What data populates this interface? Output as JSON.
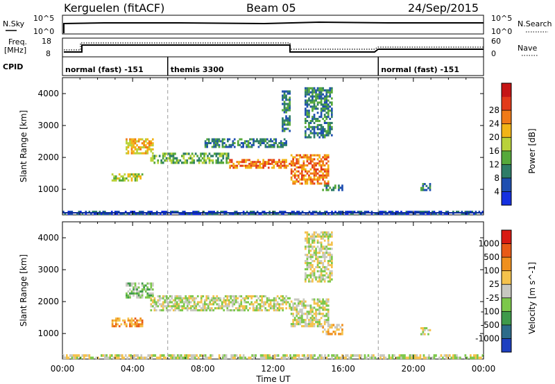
{
  "header": {
    "radar": "Kerguelen (fitACF)",
    "beam": "Beam 05",
    "date": "24/Sep/2015"
  },
  "nsky_panel": {
    "left_label": "N.Sky",
    "right_label": "N.Search",
    "left_ticks": [
      "10^5",
      "10^0"
    ],
    "right_ticks": [
      "10^5",
      "10^0"
    ]
  },
  "freq_panel": {
    "left_label_line1": "Freq.",
    "left_label_line2": "[MHz]",
    "left_ticks": [
      "18",
      "8"
    ],
    "right_label": "Nave",
    "right_ticks": [
      "60",
      "0"
    ]
  },
  "cpid_panel": {
    "label": "CPID",
    "segments": [
      {
        "label": "normal (fast) -151",
        "start": "00:00",
        "end": "06:00"
      },
      {
        "label": "themis 3300",
        "start": "06:00",
        "end": "18:00"
      },
      {
        "label": "normal (fast) -151",
        "start": "18:00",
        "end": "24:00"
      }
    ]
  },
  "power_colorbar": {
    "label": "Power [dB]",
    "ticks": [
      "4",
      "8",
      "12",
      "16",
      "20",
      "24",
      "28"
    ],
    "colors": [
      "#1530e0",
      "#1f4fb0",
      "#2e7d67",
      "#56a93a",
      "#b9d23a",
      "#f2b416",
      "#f07a17",
      "#e23a1a",
      "#c51515"
    ]
  },
  "velocity_colorbar": {
    "label": "Velocity [m s^-1]",
    "ticks": [
      "1000",
      "500",
      "100",
      "25",
      "-25",
      "-100",
      "-500",
      "-1000"
    ],
    "colors": [
      "#1d3fc0",
      "#2c6c8a",
      "#3e9a4a",
      "#7cc84a",
      "#c8c8c0",
      "#f5c24c",
      "#f0901e",
      "#e85a16",
      "#d81a12"
    ]
  },
  "chart_data": [
    {
      "type": "heatmap",
      "name": "power",
      "ylabel": "Slant Range [km]",
      "xlabel": "",
      "y_ticks": [
        "1000",
        "2000",
        "3000",
        "4000"
      ],
      "ylim": [
        200,
        4500
      ],
      "xlim_hours": [
        0,
        24
      ],
      "x_tick_labels": [],
      "regions": [
        {
          "t0": 2.8,
          "t1": 4.6,
          "r0": 1250,
          "r1": 1500,
          "level": 4
        },
        {
          "t0": 3.6,
          "t1": 5.2,
          "r0": 2100,
          "r1": 2600,
          "level": 5
        },
        {
          "t0": 5.0,
          "t1": 9.5,
          "r0": 1800,
          "r1": 2150,
          "level": 3
        },
        {
          "t0": 9.5,
          "t1": 13.0,
          "r0": 1650,
          "r1": 1950,
          "level": 6
        },
        {
          "t0": 8.0,
          "t1": 12.8,
          "r0": 2300,
          "r1": 2600,
          "level": 2
        },
        {
          "t0": 12.5,
          "t1": 13.0,
          "r0": 2800,
          "r1": 4100,
          "level": 2
        },
        {
          "t0": 13.0,
          "t1": 15.2,
          "r0": 1150,
          "r1": 2100,
          "level": 6
        },
        {
          "t0": 13.8,
          "t1": 15.4,
          "r0": 2600,
          "r1": 4200,
          "level": 2
        },
        {
          "t0": 14.8,
          "t1": 16.0,
          "r0": 950,
          "r1": 1150,
          "level": 2
        },
        {
          "t0": 20.4,
          "t1": 21.0,
          "r0": 950,
          "r1": 1200,
          "level": 2
        },
        {
          "t0": 0.0,
          "t1": 24.0,
          "r0": 200,
          "r1": 330,
          "level": 1
        }
      ],
      "night_guides_hours": [
        6,
        18
      ]
    },
    {
      "type": "heatmap",
      "name": "velocity",
      "ylabel": "Slant Range [km]",
      "xlabel": "Time UT",
      "y_ticks": [
        "1000",
        "2000",
        "3000",
        "4000"
      ],
      "ylim": [
        200,
        4500
      ],
      "xlim_hours": [
        0,
        24
      ],
      "x_tick_labels": [
        "00:00",
        "04:00",
        "08:00",
        "12:00",
        "16:00",
        "20:00",
        "00:00"
      ],
      "regions": [
        {
          "t0": 2.8,
          "t1": 4.6,
          "r0": 1200,
          "r1": 1500,
          "level": 6
        },
        {
          "t0": 3.6,
          "t1": 5.2,
          "r0": 2100,
          "r1": 2600,
          "level": 3
        },
        {
          "t0": 5.0,
          "t1": 13.0,
          "r0": 1700,
          "r1": 2200,
          "level": 4
        },
        {
          "t0": 13.0,
          "t1": 15.2,
          "r0": 1200,
          "r1": 2100,
          "level": 4
        },
        {
          "t0": 13.8,
          "t1": 15.4,
          "r0": 2600,
          "r1": 4200,
          "level": 4
        },
        {
          "t0": 14.8,
          "t1": 16.0,
          "r0": 950,
          "r1": 1300,
          "level": 5
        },
        {
          "t0": 20.4,
          "t1": 21.0,
          "r0": 950,
          "r1": 1200,
          "level": 4
        },
        {
          "t0": 0.0,
          "t1": 24.0,
          "r0": 200,
          "r1": 350,
          "level": 4
        }
      ],
      "night_guides_hours": [
        6,
        18
      ]
    }
  ]
}
